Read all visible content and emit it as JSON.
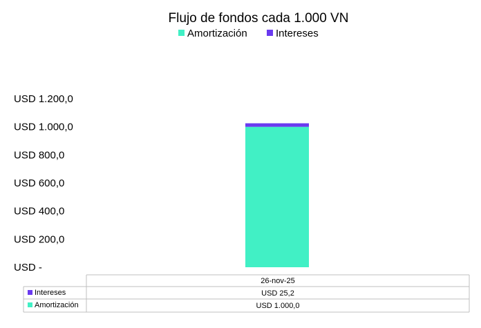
{
  "chart_data": {
    "type": "bar",
    "stacked": true,
    "title": "Flujo de fondos cada 1.000 VN",
    "categories": [
      "26-nov-25"
    ],
    "series": [
      {
        "name": "Amortización",
        "values": [
          1000.0
        ],
        "value_labels": [
          "USD 1.000,0"
        ],
        "color": "#41F0C5"
      },
      {
        "name": "Intereses",
        "values": [
          25.2
        ],
        "value_labels": [
          "USD 25,2"
        ],
        "color": "#6A3AF0"
      }
    ],
    "ylim": [
      0,
      1200
    ],
    "yticks": [
      0,
      200,
      400,
      600,
      800,
      1000,
      1200
    ],
    "ytick_labels": [
      "USD -",
      "USD 200,0",
      "USD 400,0",
      "USD 600,0",
      "USD 800,0",
      "USD 1.000,0",
      "USD 1.200,0"
    ],
    "legend": "top",
    "data_table": true,
    "grid": false
  }
}
